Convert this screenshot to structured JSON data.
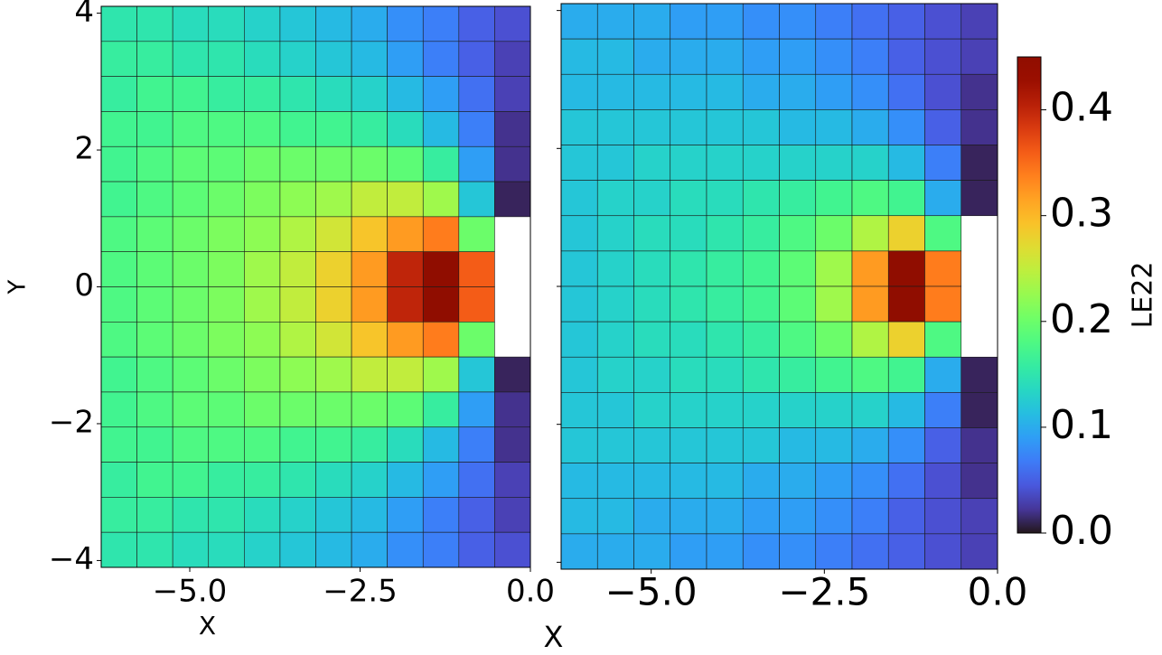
{
  "chart_data": [
    {
      "type": "heatmap",
      "xlabel": "X",
      "ylabel": "Y",
      "xlim": [
        -6.3,
        0
      ],
      "ylim": [
        -4.1,
        4.1
      ],
      "xticks": [
        {
          "value": -5,
          "label": "−5.0"
        },
        {
          "value": -2.5,
          "label": "−2.5"
        },
        {
          "value": 0,
          "label": "0.0"
        }
      ],
      "yticks": [
        {
          "value": -4,
          "label": "−4"
        },
        {
          "value": -2,
          "label": "−2"
        },
        0,
        2,
        4
      ],
      "values": [
        [
          0.15,
          0.15,
          0.14,
          0.14,
          0.13,
          0.12,
          0.11,
          0.1,
          0.08,
          0.07,
          0.05,
          0.04
        ],
        [
          0.16,
          0.16,
          0.15,
          0.15,
          0.14,
          0.13,
          0.12,
          0.11,
          0.09,
          0.07,
          0.05,
          0.03
        ],
        [
          0.16,
          0.17,
          0.17,
          0.16,
          0.16,
          0.15,
          0.14,
          0.13,
          0.11,
          0.09,
          0.06,
          0.03
        ],
        [
          0.17,
          0.17,
          0.18,
          0.18,
          0.18,
          0.17,
          0.17,
          0.16,
          0.14,
          0.11,
          0.07,
          0.02
        ],
        [
          0.17,
          0.18,
          0.19,
          0.19,
          0.2,
          0.2,
          0.2,
          0.2,
          0.19,
          0.16,
          0.09,
          0.02
        ],
        [
          0.17,
          0.18,
          0.19,
          0.2,
          0.21,
          0.22,
          0.23,
          0.25,
          0.25,
          0.23,
          0.12,
          0.01
        ],
        [
          0.18,
          0.19,
          0.2,
          0.21,
          0.22,
          0.24,
          0.26,
          0.29,
          0.32,
          0.34,
          0.2,
          null
        ],
        [
          0.18,
          0.19,
          0.2,
          0.21,
          0.23,
          0.25,
          0.28,
          0.32,
          0.4,
          0.45,
          0.36,
          null
        ],
        [
          0.18,
          0.19,
          0.2,
          0.21,
          0.23,
          0.25,
          0.28,
          0.32,
          0.4,
          0.45,
          0.36,
          null
        ],
        [
          0.18,
          0.19,
          0.2,
          0.21,
          0.22,
          0.24,
          0.26,
          0.29,
          0.32,
          0.34,
          0.2,
          null
        ],
        [
          0.17,
          0.18,
          0.19,
          0.2,
          0.21,
          0.22,
          0.23,
          0.25,
          0.25,
          0.23,
          0.12,
          0.01
        ],
        [
          0.17,
          0.18,
          0.19,
          0.19,
          0.2,
          0.2,
          0.2,
          0.2,
          0.19,
          0.16,
          0.09,
          0.02
        ],
        [
          0.17,
          0.17,
          0.18,
          0.18,
          0.18,
          0.17,
          0.17,
          0.16,
          0.14,
          0.11,
          0.07,
          0.02
        ],
        [
          0.16,
          0.17,
          0.17,
          0.16,
          0.16,
          0.15,
          0.14,
          0.13,
          0.11,
          0.09,
          0.06,
          0.03
        ],
        [
          0.16,
          0.16,
          0.15,
          0.15,
          0.14,
          0.13,
          0.12,
          0.11,
          0.09,
          0.07,
          0.05,
          0.03
        ],
        [
          0.15,
          0.15,
          0.14,
          0.14,
          0.13,
          0.12,
          0.11,
          0.1,
          0.08,
          0.07,
          0.05,
          0.04
        ]
      ]
    },
    {
      "type": "heatmap",
      "xlabel": "X",
      "xlim": [
        -6.3,
        0
      ],
      "ylim": [
        -4.1,
        4.1
      ],
      "xticks": [
        {
          "value": -5,
          "label": "−5.0"
        },
        {
          "value": -2.5,
          "label": "−2.5"
        },
        {
          "value": 0,
          "label": "0.0"
        }
      ],
      "yticks_unlabeled": [
        -4,
        -2,
        0,
        2,
        4
      ],
      "values": [
        [
          0.1,
          0.1,
          0.1,
          0.09,
          0.09,
          0.08,
          0.08,
          0.07,
          0.06,
          0.05,
          0.04,
          0.03
        ],
        [
          0.11,
          0.11,
          0.1,
          0.1,
          0.1,
          0.09,
          0.09,
          0.08,
          0.07,
          0.05,
          0.04,
          0.03
        ],
        [
          0.11,
          0.11,
          0.11,
          0.11,
          0.11,
          0.1,
          0.1,
          0.09,
          0.08,
          0.06,
          0.04,
          0.02
        ],
        [
          0.12,
          0.12,
          0.12,
          0.12,
          0.12,
          0.12,
          0.11,
          0.11,
          0.1,
          0.08,
          0.05,
          0.02
        ],
        [
          0.12,
          0.12,
          0.13,
          0.13,
          0.13,
          0.13,
          0.13,
          0.13,
          0.13,
          0.11,
          0.07,
          0.01
        ],
        [
          0.12,
          0.13,
          0.13,
          0.14,
          0.14,
          0.15,
          0.16,
          0.17,
          0.18,
          0.17,
          0.1,
          0.01
        ],
        [
          0.12,
          0.13,
          0.14,
          0.14,
          0.15,
          0.16,
          0.18,
          0.2,
          0.24,
          0.28,
          0.18,
          null
        ],
        [
          0.12,
          0.13,
          0.14,
          0.15,
          0.16,
          0.17,
          0.19,
          0.23,
          0.32,
          0.45,
          0.34,
          null
        ],
        [
          0.12,
          0.13,
          0.14,
          0.15,
          0.16,
          0.17,
          0.19,
          0.23,
          0.32,
          0.45,
          0.34,
          null
        ],
        [
          0.12,
          0.13,
          0.14,
          0.14,
          0.15,
          0.16,
          0.18,
          0.2,
          0.24,
          0.28,
          0.18,
          null
        ],
        [
          0.12,
          0.13,
          0.13,
          0.14,
          0.14,
          0.15,
          0.16,
          0.17,
          0.18,
          0.17,
          0.1,
          0.01
        ],
        [
          0.12,
          0.12,
          0.13,
          0.13,
          0.13,
          0.13,
          0.13,
          0.13,
          0.13,
          0.11,
          0.07,
          0.01
        ],
        [
          0.12,
          0.12,
          0.12,
          0.12,
          0.12,
          0.12,
          0.11,
          0.11,
          0.1,
          0.08,
          0.05,
          0.02
        ],
        [
          0.11,
          0.11,
          0.11,
          0.11,
          0.11,
          0.1,
          0.1,
          0.09,
          0.08,
          0.06,
          0.04,
          0.02
        ],
        [
          0.11,
          0.11,
          0.1,
          0.1,
          0.1,
          0.09,
          0.09,
          0.08,
          0.07,
          0.05,
          0.04,
          0.03
        ],
        [
          0.1,
          0.1,
          0.1,
          0.09,
          0.09,
          0.08,
          0.08,
          0.07,
          0.06,
          0.05,
          0.04,
          0.03
        ]
      ]
    }
  ],
  "colorbar": {
    "label": "LE22",
    "colormap": "turbo",
    "lim": [
      0,
      0.45
    ],
    "ticks": [
      {
        "value": 0,
        "label": "0.0"
      },
      0.1,
      0.2,
      0.3,
      0.4
    ]
  }
}
